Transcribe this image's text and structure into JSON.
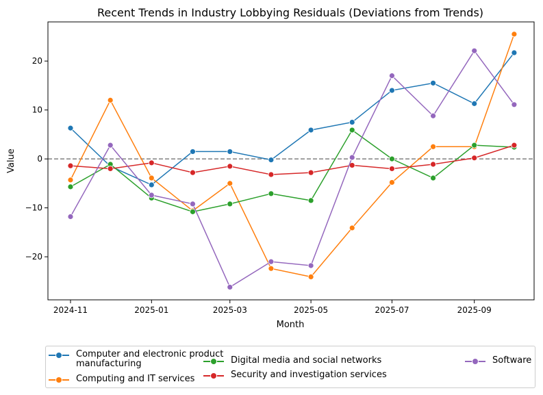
{
  "chart_data": {
    "type": "line",
    "title": "Recent Trends in Industry Lobbying Residuals (Deviations from Trends)",
    "xlabel": "Month",
    "ylabel": "Value",
    "x": [
      "2024-11",
      "2024-12",
      "2025-01",
      "2025-02",
      "2025-03",
      "2025-04",
      "2025-05",
      "2025-06",
      "2025-07",
      "2025-08",
      "2025-09",
      "2025-10"
    ],
    "xticks": [
      "2024-11",
      "2025-01",
      "2025-03",
      "2025-05",
      "2025-07",
      "2025-09"
    ],
    "yticks": [
      -20,
      -10,
      0,
      10,
      20
    ],
    "ylim": [
      -28.8,
      28
    ],
    "xlim": [
      "2024-10-15",
      "2025-10-16"
    ],
    "grid": false,
    "reference_line": {
      "y": 0,
      "style": "dashed",
      "color": "#808080"
    },
    "legend_placement": "bottom",
    "series": [
      {
        "name": "Computer and electronic product manufacturing",
        "color": "#1f77b4",
        "values": [
          6.3,
          -1.5,
          -5.3,
          1.5,
          1.5,
          -0.2,
          5.9,
          7.5,
          14.0,
          15.5,
          11.3,
          21.7
        ]
      },
      {
        "name": "Computing and IT services",
        "color": "#ff7f0e",
        "values": [
          -4.3,
          12.0,
          -3.9,
          -10.6,
          -5.0,
          -22.4,
          -24.1,
          -14.1,
          -4.8,
          2.5,
          2.5,
          25.5
        ]
      },
      {
        "name": "Digital media and social networks",
        "color": "#2ca02c",
        "values": [
          -5.7,
          -1.1,
          -8.0,
          -10.8,
          -9.2,
          -7.1,
          -8.5,
          5.9,
          0.0,
          -3.9,
          2.8,
          2.4
        ]
      },
      {
        "name": "Security and investigation services",
        "color": "#d62728",
        "values": [
          -1.4,
          -2.0,
          -0.8,
          -2.8,
          -1.5,
          -3.2,
          -2.8,
          -1.3,
          -2.0,
          -1.1,
          0.2,
          2.8
        ]
      },
      {
        "name": "Software",
        "color": "#9467bd",
        "values": [
          -11.8,
          2.8,
          -7.4,
          -9.2,
          -26.2,
          -21.0,
          -21.8,
          0.3,
          17.0,
          8.8,
          22.1,
          11.1
        ]
      }
    ]
  }
}
